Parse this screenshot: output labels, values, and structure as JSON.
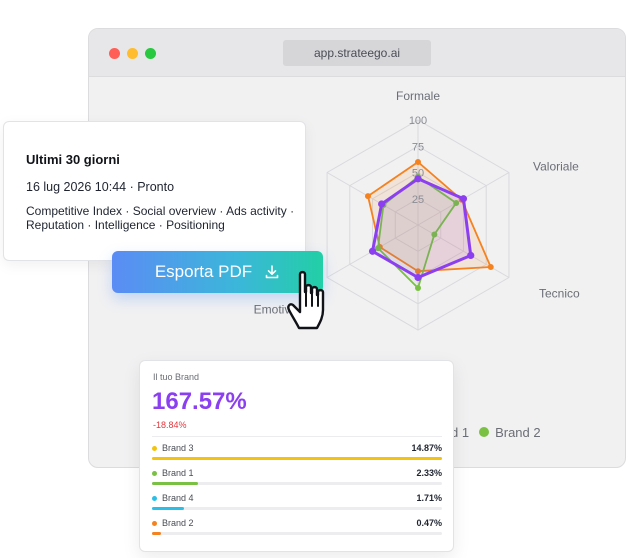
{
  "browser": {
    "url": "app.strateego.ai"
  },
  "radar": {
    "axes": [
      "Formale",
      "Valoriale",
      "Tecnico",
      "",
      "Emotivo",
      ""
    ],
    "ticks": [
      "100",
      "75",
      "50",
      "25"
    ],
    "series_colors": {
      "purple": "#8b3ff0",
      "orange": "#f5821f",
      "green": "#7ac143"
    }
  },
  "chart_data": {
    "type": "radar",
    "axes": [
      "Formale",
      "Valoriale",
      "Tecnico",
      "",
      "Emotivo",
      ""
    ],
    "range": [
      0,
      100
    ],
    "ticks": [
      25,
      50,
      75,
      100
    ],
    "series": [
      {
        "color": "#8b3ff0",
        "values": [
          44,
          50,
          58,
          50,
          50,
          40
        ]
      },
      {
        "color": "#f5821f",
        "values": [
          60,
          48,
          80,
          44,
          42,
          55
        ]
      },
      {
        "color": "#7ac143",
        "values": [
          46,
          42,
          18,
          60,
          44,
          38
        ]
      }
    ]
  },
  "legend": {
    "items": [
      {
        "label": "Brand 1",
        "visible_text": "d 1",
        "color": "#7ac143"
      },
      {
        "label": "Brand 2",
        "color": "#7ac143"
      }
    ]
  },
  "info_card": {
    "title": "Ultimi 30 giorni",
    "date_status": "16 lug 2026 10:44 · Pronto",
    "description": "Competitive Index · Social overview · Ads activity · Reputation · Intelligence · Positioning"
  },
  "export_button": {
    "label": "Esporta PDF",
    "icon": "download-icon"
  },
  "brand_card": {
    "label": "Il tuo Brand",
    "value": "167.57%",
    "delta": "-18.84%",
    "rows": [
      {
        "name": "Brand 3",
        "pct": "14.87%",
        "share": 1.0,
        "color": "#f2c40f"
      },
      {
        "name": "Brand 1",
        "pct": "2.33%",
        "share": 0.16,
        "color": "#7ac143"
      },
      {
        "name": "Brand 4",
        "pct": "1.71%",
        "share": 0.11,
        "color": "#2bbfe8"
      },
      {
        "name": "Brand 2",
        "pct": "0.47%",
        "share": 0.03,
        "color": "#f5821f"
      }
    ]
  }
}
